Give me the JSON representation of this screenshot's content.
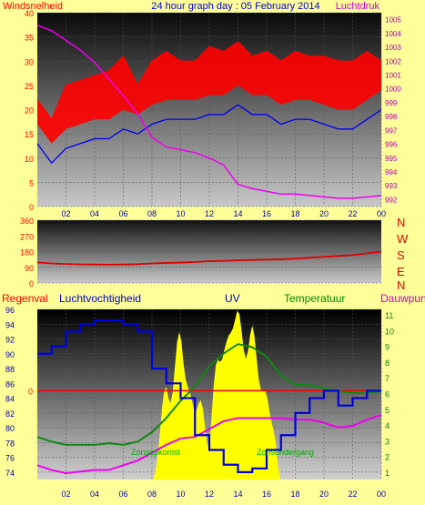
{
  "colors": {
    "bg": "#ffff99",
    "wind": "#ff0000",
    "gust_band": "#ff0000",
    "wind_avg": "#0000ee",
    "pressure": "#ee00ee",
    "direction": "#dd0000",
    "humidity": "#0000dd",
    "uv": "#ffff00",
    "temperature": "#118811",
    "dewpoint": "#ee00ee",
    "rain": "#ff0000",
    "title_blue": "#0000cc",
    "label_red": "#ff0000",
    "label_magenta": "#cc00cc",
    "label_green": "#008800",
    "tick_blue": "#0000aa",
    "tick_green": "#117711",
    "right_magenta": "#aa00aa"
  },
  "chart_data": [
    {
      "type": "line",
      "title": "24 hour graph day : 05 February 2014",
      "left_label": "Windsnelheid",
      "right_label": "Luchtdruk",
      "x_ticks": [
        "02",
        "04",
        "06",
        "08",
        "10",
        "12",
        "14",
        "16",
        "18",
        "20",
        "22",
        "00"
      ],
      "ylim_left": [
        0,
        40
      ],
      "y_ticks_left": [
        "0",
        "5",
        "10",
        "15",
        "20",
        "25",
        "30",
        "35",
        "40"
      ],
      "ylim_right": [
        991.5,
        1005.5
      ],
      "y_ticks_right": [
        "992",
        "993",
        "994",
        "995",
        "996",
        "997",
        "998",
        "999",
        "1000",
        "1001",
        "1002",
        "1003",
        "1004",
        "1005"
      ],
      "x_hours": [
        0,
        1,
        2,
        3,
        4,
        5,
        6,
        7,
        8,
        9,
        10,
        11,
        12,
        13,
        14,
        15,
        16,
        17,
        18,
        19,
        20,
        21,
        22,
        23,
        24
      ],
      "series": [
        {
          "name": "gust",
          "values": [
            22,
            18,
            25,
            26,
            27,
            28,
            31,
            25,
            30,
            32,
            30,
            30,
            33,
            32,
            34,
            31,
            32,
            30,
            32,
            31,
            31,
            30,
            30,
            32,
            30
          ]
        },
        {
          "name": "wind",
          "values": [
            13,
            9,
            12,
            13,
            14,
            14,
            16,
            15,
            17,
            18,
            18,
            18,
            19,
            19,
            21,
            19,
            19,
            17,
            18,
            18,
            17,
            16,
            16,
            18,
            20
          ]
        },
        {
          "name": "pressure",
          "values": [
            1004.6,
            1004.2,
            1003.5,
            1002.8,
            1001.9,
            1000.7,
            999.5,
            998.2,
            996.5,
            995.8,
            995.6,
            995.4,
            995.0,
            994.5,
            993.1,
            992.8,
            992.6,
            992.4,
            992.4,
            992.3,
            992.2,
            992.1,
            992.1,
            992.2,
            992.3
          ]
        }
      ]
    },
    {
      "type": "line",
      "ylim": [
        0,
        360
      ],
      "y_ticks": [
        "0",
        "90",
        "180",
        "270",
        "360"
      ],
      "compass": [
        "N",
        "W",
        "S",
        "E",
        "N"
      ],
      "series": [
        {
          "name": "direction",
          "values": [
            118,
            112,
            109,
            107,
            106,
            105,
            106,
            108,
            112,
            115,
            117,
            120,
            125,
            127,
            130,
            132,
            134,
            136,
            140,
            145,
            150,
            155,
            160,
            170,
            180
          ]
        }
      ]
    },
    {
      "type": "line",
      "header_labels": [
        "Regenval",
        "Luchtvochtigheid",
        "UV",
        "Temperatuur",
        "Dauwpunt"
      ],
      "annotations": [
        "Zonsopkomst",
        "Zonsondergang"
      ],
      "ylim_humidity": [
        73,
        96
      ],
      "y_ticks_humidity": [
        "74",
        "76",
        "78",
        "80",
        "82",
        "84",
        "86",
        "88",
        "90",
        "92",
        "94",
        "96"
      ],
      "rain_tick": "0",
      "y_ticks_uv": [
        "1",
        "2",
        "3",
        "4",
        "5",
        "6",
        "7",
        "8",
        "9",
        "10",
        "11"
      ],
      "series": [
        {
          "name": "humidity",
          "values": [
            90,
            91,
            93,
            94,
            94.5,
            94.5,
            94,
            93,
            88,
            86,
            84,
            79,
            77,
            75,
            74,
            74.5,
            77,
            79,
            82,
            84,
            85,
            83,
            84,
            85,
            85
          ]
        },
        {
          "name": "temperature",
          "values": [
            3.3,
            3.0,
            2.8,
            2.8,
            2.8,
            2.9,
            2.8,
            3.0,
            3.6,
            4.5,
            5.6,
            6.5,
            7.8,
            8.6,
            9.2,
            9.0,
            8.4,
            7.2,
            6.6,
            6.6,
            6.4,
            6.2,
            6.1,
            6.1,
            6.2
          ]
        },
        {
          "name": "dewpoint",
          "values": [
            1.5,
            1.2,
            1.0,
            1.1,
            1.2,
            1.2,
            1.5,
            1.8,
            2.3,
            2.8,
            3.2,
            3.3,
            3.8,
            4.3,
            4.5,
            4.5,
            4.5,
            4.5,
            4.4,
            4.4,
            4.2,
            3.9,
            4.0,
            4.4,
            4.7
          ]
        },
        {
          "name": "uv",
          "values": [
            0,
            0,
            0,
            0,
            0,
            0,
            0,
            0,
            0,
            6,
            9,
            5,
            4,
            9.5,
            10.5,
            9,
            6,
            0,
            0,
            0,
            0,
            0,
            0,
            0,
            0
          ]
        }
      ]
    }
  ]
}
